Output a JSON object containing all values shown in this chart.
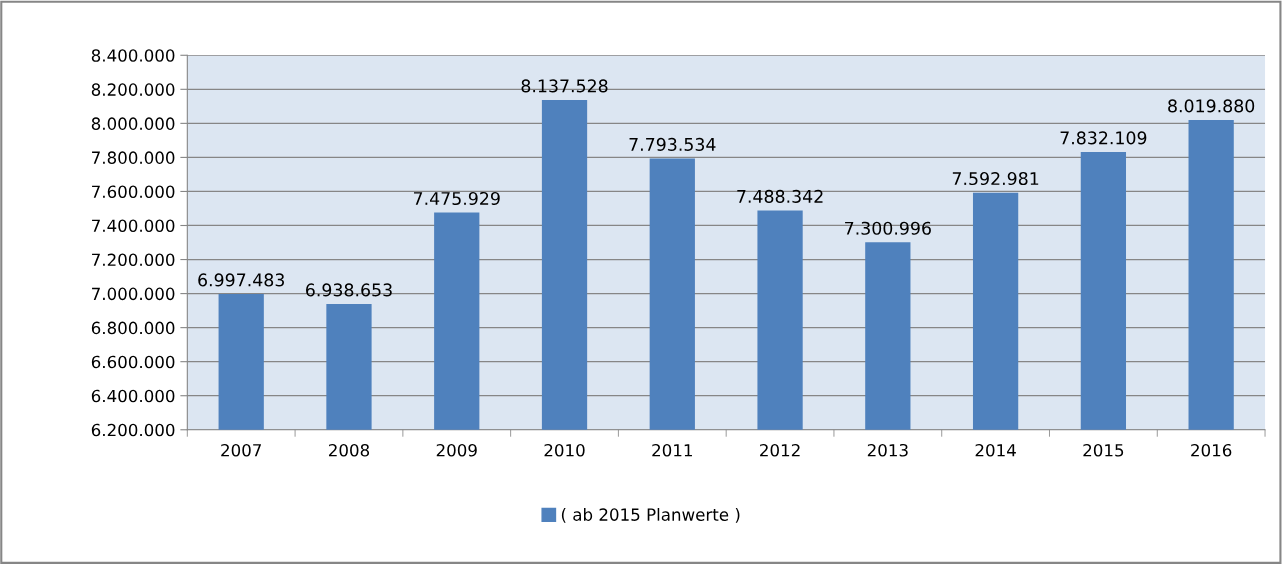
{
  "chart_data": {
    "type": "bar",
    "categories": [
      "2007",
      "2008",
      "2009",
      "2010",
      "2011",
      "2012",
      "2013",
      "2014",
      "2015",
      "2016"
    ],
    "series": [
      {
        "name": "( ab 2015 Planwerte )",
        "color": "#4f81bd",
        "values": [
          6997483,
          6938653,
          7475929,
          8137528,
          7793534,
          7488342,
          7300996,
          7592981,
          7832109,
          8019880
        ],
        "value_labels": [
          "6.997.483",
          "6.938.653",
          "7.475.929",
          "8.137.528",
          "7.793.534",
          "7.488.342",
          "7.300.996",
          "7.592.981",
          "7.832.109",
          "8.019.880"
        ]
      }
    ],
    "ylim": [
      6200000,
      8400000
    ],
    "yticks": [
      {
        "value": 6200000,
        "label": "6.200.000"
      },
      {
        "value": 6400000,
        "label": "6.400.000"
      },
      {
        "value": 6600000,
        "label": "6.600.000"
      },
      {
        "value": 6800000,
        "label": "6.800.000"
      },
      {
        "value": 7000000,
        "label": "7.000.000"
      },
      {
        "value": 7200000,
        "label": "7.200.000"
      },
      {
        "value": 7400000,
        "label": "7.400.000"
      },
      {
        "value": 7600000,
        "label": "7.600.000"
      },
      {
        "value": 7800000,
        "label": "7.800.000"
      },
      {
        "value": 8000000,
        "label": "8.000.000"
      },
      {
        "value": 8200000,
        "label": "8.200.000"
      },
      {
        "value": 8400000,
        "label": "8.400.000"
      }
    ],
    "grid": "y",
    "legend": "bottom"
  }
}
